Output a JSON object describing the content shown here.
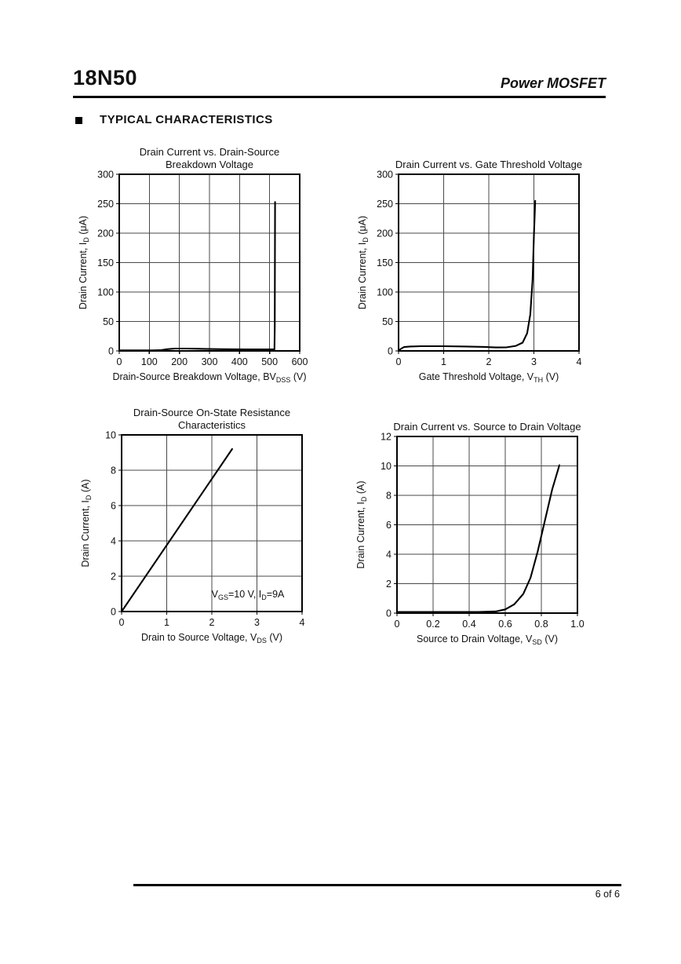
{
  "header": {
    "part_number": "18N50",
    "product_family": "Power MOSFET"
  },
  "section": {
    "title": "TYPICAL CHARACTERISTICS"
  },
  "footer": {
    "page_number": "6 of 6"
  },
  "colors": {
    "curve": "#000000",
    "grid": "#4a4a4a",
    "border": "#000000",
    "text": "#111111"
  },
  "chart_data": [
    {
      "type": "line",
      "title_lines": [
        "Drain Current vs. Drain-Source",
        "Breakdown Voltage"
      ],
      "xlabel": [
        {
          "t": "Drain-Source Breakdown Voltage, BV"
        },
        {
          "s": "DSS"
        },
        {
          "t": " (V)"
        }
      ],
      "ylabel": [
        {
          "t": "Drain Current, I"
        },
        {
          "s": "D"
        },
        {
          "t": " (μA)"
        }
      ],
      "xlim": [
        0,
        600
      ],
      "ylim": [
        0,
        300
      ],
      "xticks": [
        0,
        100,
        200,
        300,
        400,
        500,
        600
      ],
      "xtick_labels": [
        "0",
        "100",
        "200",
        "300",
        "400",
        "500",
        "600"
      ],
      "yticks": [
        0,
        50,
        100,
        150,
        200,
        250,
        300
      ],
      "ytick_labels": [
        "0",
        "50",
        "100",
        "150",
        "200",
        "250",
        "300"
      ],
      "grid": true,
      "legend": "none",
      "series": [
        {
          "name": "drain-current",
          "points": [
            [
              0,
              1
            ],
            [
              110,
              1
            ],
            [
              140,
              1.5
            ],
            [
              160,
              3
            ],
            [
              185,
              4
            ],
            [
              225,
              4
            ],
            [
              280,
              3.5
            ],
            [
              340,
              3
            ],
            [
              420,
              2.5
            ],
            [
              490,
              2.5
            ],
            [
              516,
              2.5
            ],
            [
              517,
              40
            ],
            [
              518,
              253
            ]
          ]
        }
      ]
    },
    {
      "type": "line",
      "title_lines": [
        "Drain Current vs. Gate Threshold Voltage"
      ],
      "xlabel": [
        {
          "t": "Gate Threshold Voltage, V"
        },
        {
          "s": "TH"
        },
        {
          "t": " (V)"
        }
      ],
      "ylabel": [
        {
          "t": "Drain Current, I"
        },
        {
          "s": "D"
        },
        {
          "t": " (μA)"
        }
      ],
      "xlim": [
        0,
        4
      ],
      "ylim": [
        0,
        300
      ],
      "xticks": [
        0,
        1,
        2,
        3,
        4
      ],
      "xtick_labels": [
        "0",
        "1",
        "2",
        "3",
        "4"
      ],
      "yticks": [
        0,
        50,
        100,
        150,
        200,
        250,
        300
      ],
      "ytick_labels": [
        "0",
        "50",
        "100",
        "150",
        "200",
        "250",
        "300"
      ],
      "grid": true,
      "legend": "none",
      "series": [
        {
          "name": "drain-current",
          "points": [
            [
              0,
              0
            ],
            [
              0.05,
              3.5
            ],
            [
              0.12,
              6.5
            ],
            [
              0.25,
              7.5
            ],
            [
              0.5,
              8
            ],
            [
              1.0,
              8
            ],
            [
              1.5,
              7.5
            ],
            [
              1.9,
              6.8
            ],
            [
              2.15,
              5.8
            ],
            [
              2.4,
              6.2
            ],
            [
              2.6,
              8.5
            ],
            [
              2.75,
              14
            ],
            [
              2.85,
              30
            ],
            [
              2.92,
              62
            ],
            [
              2.97,
              120
            ],
            [
              3.0,
              195
            ],
            [
              3.03,
              255
            ]
          ]
        }
      ]
    },
    {
      "type": "line",
      "title_lines": [
        "Drain-Source On-State Resistance",
        "Characteristics"
      ],
      "xlabel": [
        {
          "t": "Drain to Source Voltage, V"
        },
        {
          "s": "DS"
        },
        {
          "t": " (V)"
        }
      ],
      "ylabel": [
        {
          "t": "Drain Current, I"
        },
        {
          "s": "D"
        },
        {
          "t": " (A)"
        }
      ],
      "xlim": [
        0,
        4
      ],
      "ylim": [
        0,
        10
      ],
      "xticks": [
        0,
        1,
        2,
        3,
        4
      ],
      "xtick_labels": [
        "0",
        "1",
        "2",
        "3",
        "4"
      ],
      "yticks": [
        0,
        2,
        4,
        6,
        8,
        10
      ],
      "ytick_labels": [
        "0",
        "2",
        "4",
        "6",
        "8",
        "10"
      ],
      "grid": true,
      "legend": "none",
      "annotation": {
        "segments": [
          {
            "t": "V"
          },
          {
            "s": "GS"
          },
          {
            "t": "=10 V, I"
          },
          {
            "s": "D"
          },
          {
            "t": "=9A"
          }
        ],
        "x": 2.8,
        "y": 0.8
      },
      "series": [
        {
          "name": "on-state-line",
          "points": [
            [
              0,
              0
            ],
            [
              2.45,
              9.2
            ]
          ]
        }
      ]
    },
    {
      "type": "line",
      "title_lines": [
        "Drain Current vs. Source to Drain Voltage"
      ],
      "xlabel": [
        {
          "t": "Source to Drain Voltage, V"
        },
        {
          "s": "SD"
        },
        {
          "t": " (V)"
        }
      ],
      "ylabel": [
        {
          "t": "Drain Current, I"
        },
        {
          "s": "D"
        },
        {
          "t": " (A)"
        }
      ],
      "xlim": [
        0,
        1.0
      ],
      "ylim": [
        0,
        12
      ],
      "xticks": [
        0,
        0.2,
        0.4,
        0.6,
        0.8,
        1.0
      ],
      "xtick_labels": [
        "0",
        "0.2",
        "0.4",
        "0.6",
        "0.8",
        "1.0"
      ],
      "yticks": [
        0,
        2,
        4,
        6,
        8,
        10,
        12
      ],
      "ytick_labels": [
        "0",
        "2",
        "4",
        "6",
        "8",
        "10",
        "12"
      ],
      "grid": true,
      "legend": "none",
      "series": [
        {
          "name": "body-diode",
          "points": [
            [
              0,
              0.08
            ],
            [
              0.45,
              0.08
            ],
            [
              0.55,
              0.12
            ],
            [
              0.6,
              0.25
            ],
            [
              0.65,
              0.6
            ],
            [
              0.7,
              1.3
            ],
            [
              0.74,
              2.4
            ],
            [
              0.78,
              4.2
            ],
            [
              0.82,
              6.3
            ],
            [
              0.86,
              8.4
            ],
            [
              0.9,
              10.05
            ]
          ]
        }
      ]
    }
  ]
}
